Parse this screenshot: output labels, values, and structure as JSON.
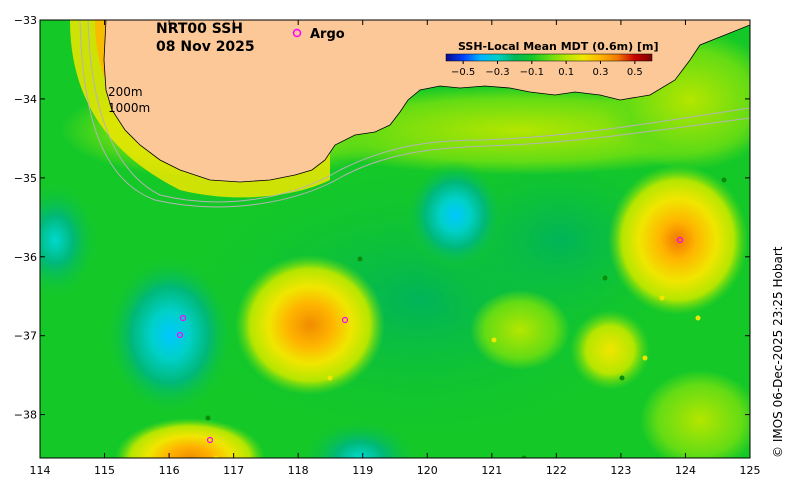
{
  "title": {
    "product": "NRT00 SSH",
    "date": "08 Nov 2025"
  },
  "legend": {
    "argo_symbol": "o",
    "argo_label": "Argo",
    "argo_color": "#ff00ff"
  },
  "isobaths": {
    "shallow": "200m",
    "deep": "1000m"
  },
  "colorbar": {
    "title": "SSH-Local Mean MDT (0.6m) [m]",
    "tick_labels": [
      "−0.5",
      "−0.3",
      "−0.1",
      "0.1",
      "0.3",
      "0.5"
    ],
    "tick_values": [
      -0.5,
      -0.3,
      -0.1,
      0.1,
      0.3,
      0.5
    ],
    "range": [
      -0.6,
      0.6
    ],
    "colors": [
      "#0a0a8c",
      "#0040ff",
      "#00b4ff",
      "#00d0c8",
      "#00b85a",
      "#14c828",
      "#64dc14",
      "#b4e600",
      "#f0e600",
      "#ffb400",
      "#f07800",
      "#c80000",
      "#780000"
    ]
  },
  "axes": {
    "x_ticks": [
      "114",
      "115",
      "116",
      "117",
      "118",
      "119",
      "120",
      "121",
      "122",
      "123",
      "124",
      "125"
    ],
    "x_values": [
      114,
      115,
      116,
      117,
      118,
      119,
      120,
      121,
      122,
      123,
      124,
      125
    ],
    "y_ticks": [
      "−33",
      "−34",
      "−35",
      "−36",
      "−37",
      "−38"
    ],
    "y_values": [
      -33,
      -34,
      -35,
      -36,
      -37,
      -38
    ],
    "lon_range": [
      114,
      125
    ],
    "lat_range": [
      -38.55,
      -33
    ]
  },
  "credit": "© IMOS 06-Dec-2025 23:25 Hobart",
  "colors": {
    "land": "#fcc898",
    "ocean_base": "#14c828"
  }
}
